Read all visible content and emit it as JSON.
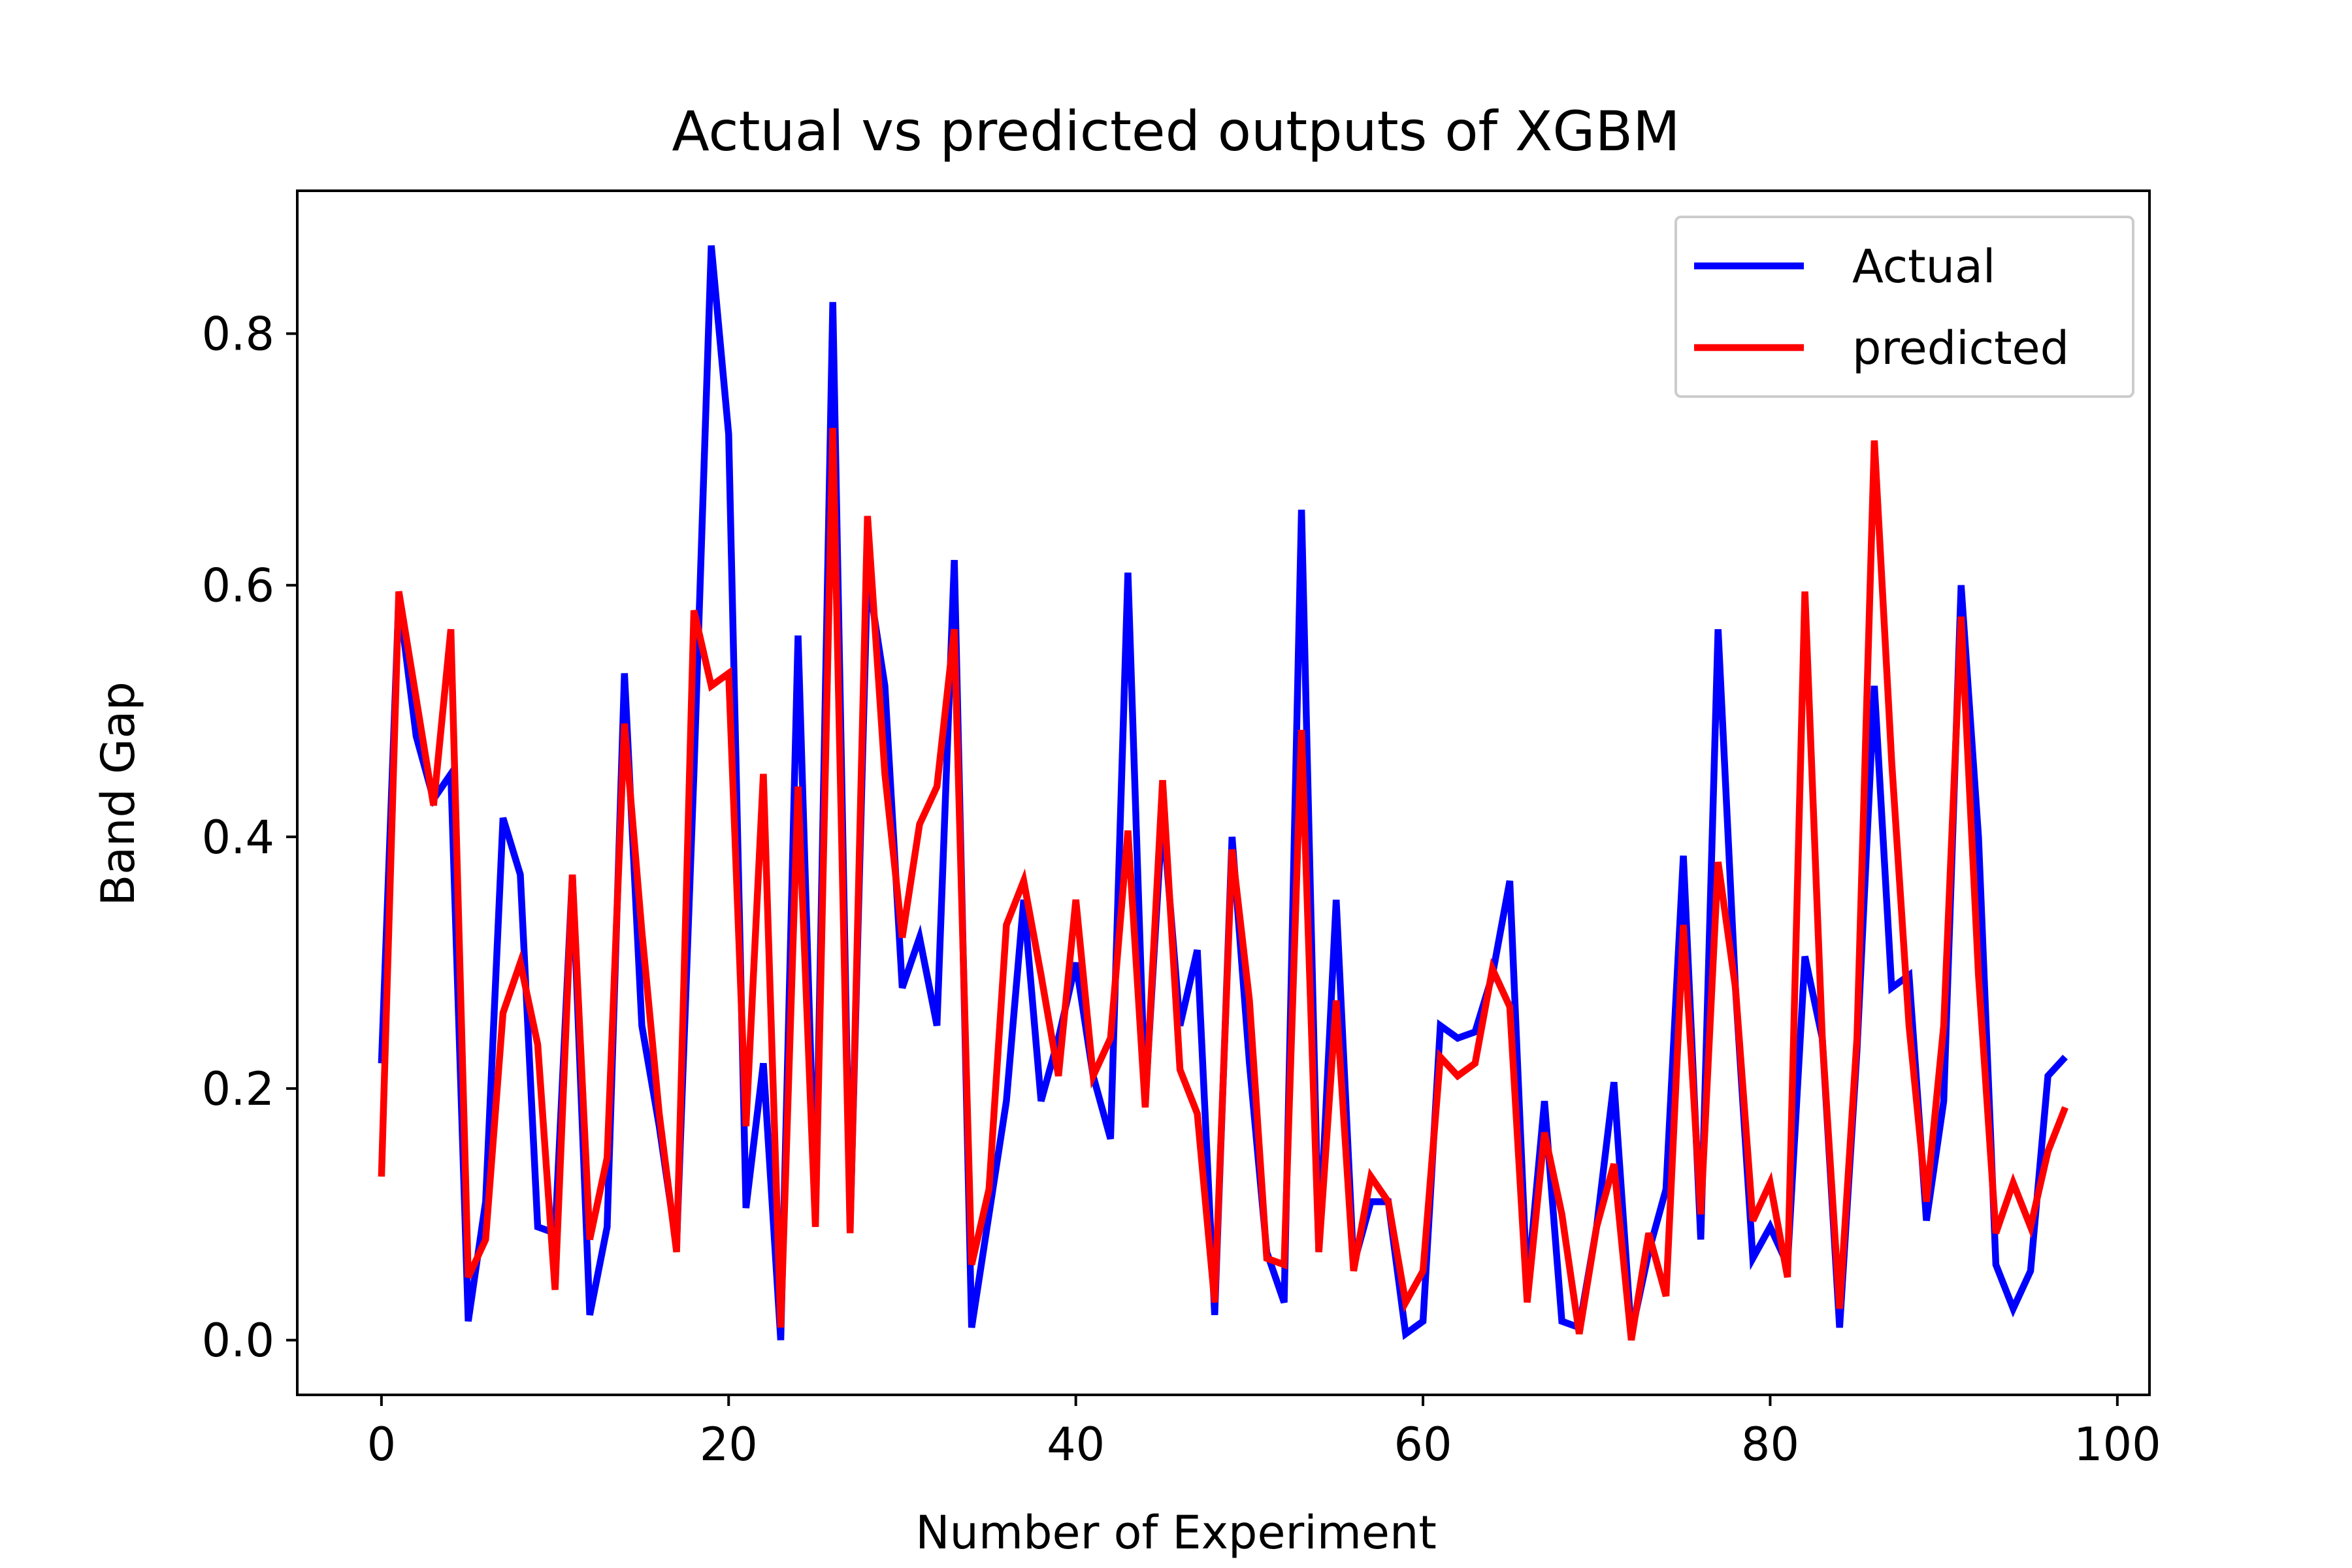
{
  "chart_data": {
    "type": "line",
    "title": "Actual vs predicted outputs of XGBM",
    "xlabel": "Number of Experiment",
    "ylabel": "Band Gap",
    "xlim": [
      -4.85,
      101.85
    ],
    "ylim": [
      -0.0435,
      0.9135
    ],
    "xticks": [
      0,
      20,
      40,
      60,
      80,
      100
    ],
    "yticks": [
      0.0,
      0.2,
      0.4,
      0.6,
      0.8
    ],
    "xtick_labels": [
      "0",
      "20",
      "40",
      "60",
      "80",
      "100"
    ],
    "ytick_labels": [
      "0.0",
      "0.2",
      "0.4",
      "0.6",
      "0.8"
    ],
    "grid": false,
    "legend_position": "top-right",
    "series": [
      {
        "name": "Actual",
        "color": "#0000ff",
        "values": [
          0.22,
          0.59,
          0.48,
          0.43,
          0.45,
          0.015,
          0.11,
          0.415,
          0.37,
          0.09,
          0.085,
          0.37,
          0.02,
          0.09,
          0.53,
          0.25,
          0.17,
          0.075,
          0.45,
          0.87,
          0.72,
          0.105,
          0.22,
          0.0,
          0.56,
          0.1,
          0.825,
          0.09,
          0.61,
          0.52,
          0.28,
          0.32,
          0.25,
          0.62,
          0.01,
          0.1,
          0.19,
          0.35,
          0.19,
          0.24,
          0.3,
          0.21,
          0.16,
          0.61,
          0.19,
          0.42,
          0.25,
          0.31,
          0.02,
          0.4,
          0.22,
          0.07,
          0.03,
          0.66,
          0.07,
          0.35,
          0.06,
          0.11,
          0.11,
          0.005,
          0.015,
          0.25,
          0.24,
          0.245,
          0.29,
          0.365,
          0.04,
          0.19,
          0.015,
          0.01,
          0.09,
          0.205,
          0.005,
          0.07,
          0.12,
          0.385,
          0.08,
          0.565,
          0.28,
          0.065,
          0.09,
          0.06,
          0.305,
          0.24,
          0.01,
          0.23,
          0.52,
          0.28,
          0.29,
          0.095,
          0.19,
          0.6,
          0.4,
          0.06,
          0.025,
          0.055,
          0.21,
          0.225
        ]
      },
      {
        "name": "predicted",
        "color": "#ff0000",
        "values": [
          0.13,
          0.595,
          0.51,
          0.425,
          0.565,
          0.05,
          0.08,
          0.26,
          0.3,
          0.235,
          0.04,
          0.37,
          0.08,
          0.145,
          0.49,
          0.325,
          0.18,
          0.07,
          0.58,
          0.52,
          0.53,
          0.17,
          0.45,
          0.01,
          0.44,
          0.09,
          0.725,
          0.085,
          0.655,
          0.45,
          0.32,
          0.41,
          0.44,
          0.565,
          0.06,
          0.12,
          0.33,
          0.365,
          0.29,
          0.21,
          0.35,
          0.21,
          0.24,
          0.405,
          0.185,
          0.445,
          0.215,
          0.18,
          0.03,
          0.39,
          0.27,
          0.065,
          0.06,
          0.485,
          0.07,
          0.27,
          0.055,
          0.13,
          0.11,
          0.03,
          0.055,
          0.225,
          0.21,
          0.22,
          0.295,
          0.265,
          0.03,
          0.165,
          0.1,
          0.005,
          0.09,
          0.14,
          0.0,
          0.085,
          0.035,
          0.33,
          0.1,
          0.38,
          0.28,
          0.095,
          0.125,
          0.05,
          0.595,
          0.24,
          0.025,
          0.24,
          0.715,
          0.46,
          0.25,
          0.11,
          0.25,
          0.575,
          0.29,
          0.085,
          0.125,
          0.09,
          0.15,
          0.185
        ]
      }
    ]
  }
}
